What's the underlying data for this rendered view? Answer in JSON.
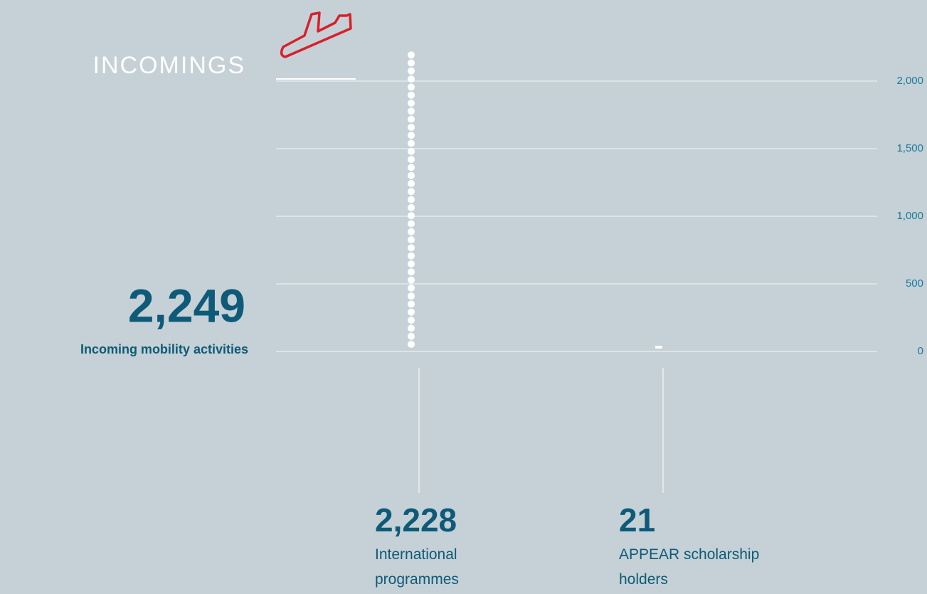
{
  "chart_data": {
    "type": "dot",
    "title": "INCOMINGS",
    "total": {
      "value": 2249,
      "value_label": "2,249",
      "label": "Incoming mobility activities"
    },
    "categories": [
      "International programmes",
      "APPEAR scholarship holders"
    ],
    "values": [
      2228,
      21
    ],
    "value_labels": [
      "2,228",
      "21"
    ],
    "color": "#ffffff",
    "ylim": [
      0,
      2000
    ],
    "yticks": [
      0,
      500,
      {
        "value": 1000,
        "label": "1,000"
      },
      {
        "value": 1500,
        "label": "1,500"
      },
      {
        "value": 2000,
        "label": "2,000"
      }
    ],
    "grid": true
  }
}
